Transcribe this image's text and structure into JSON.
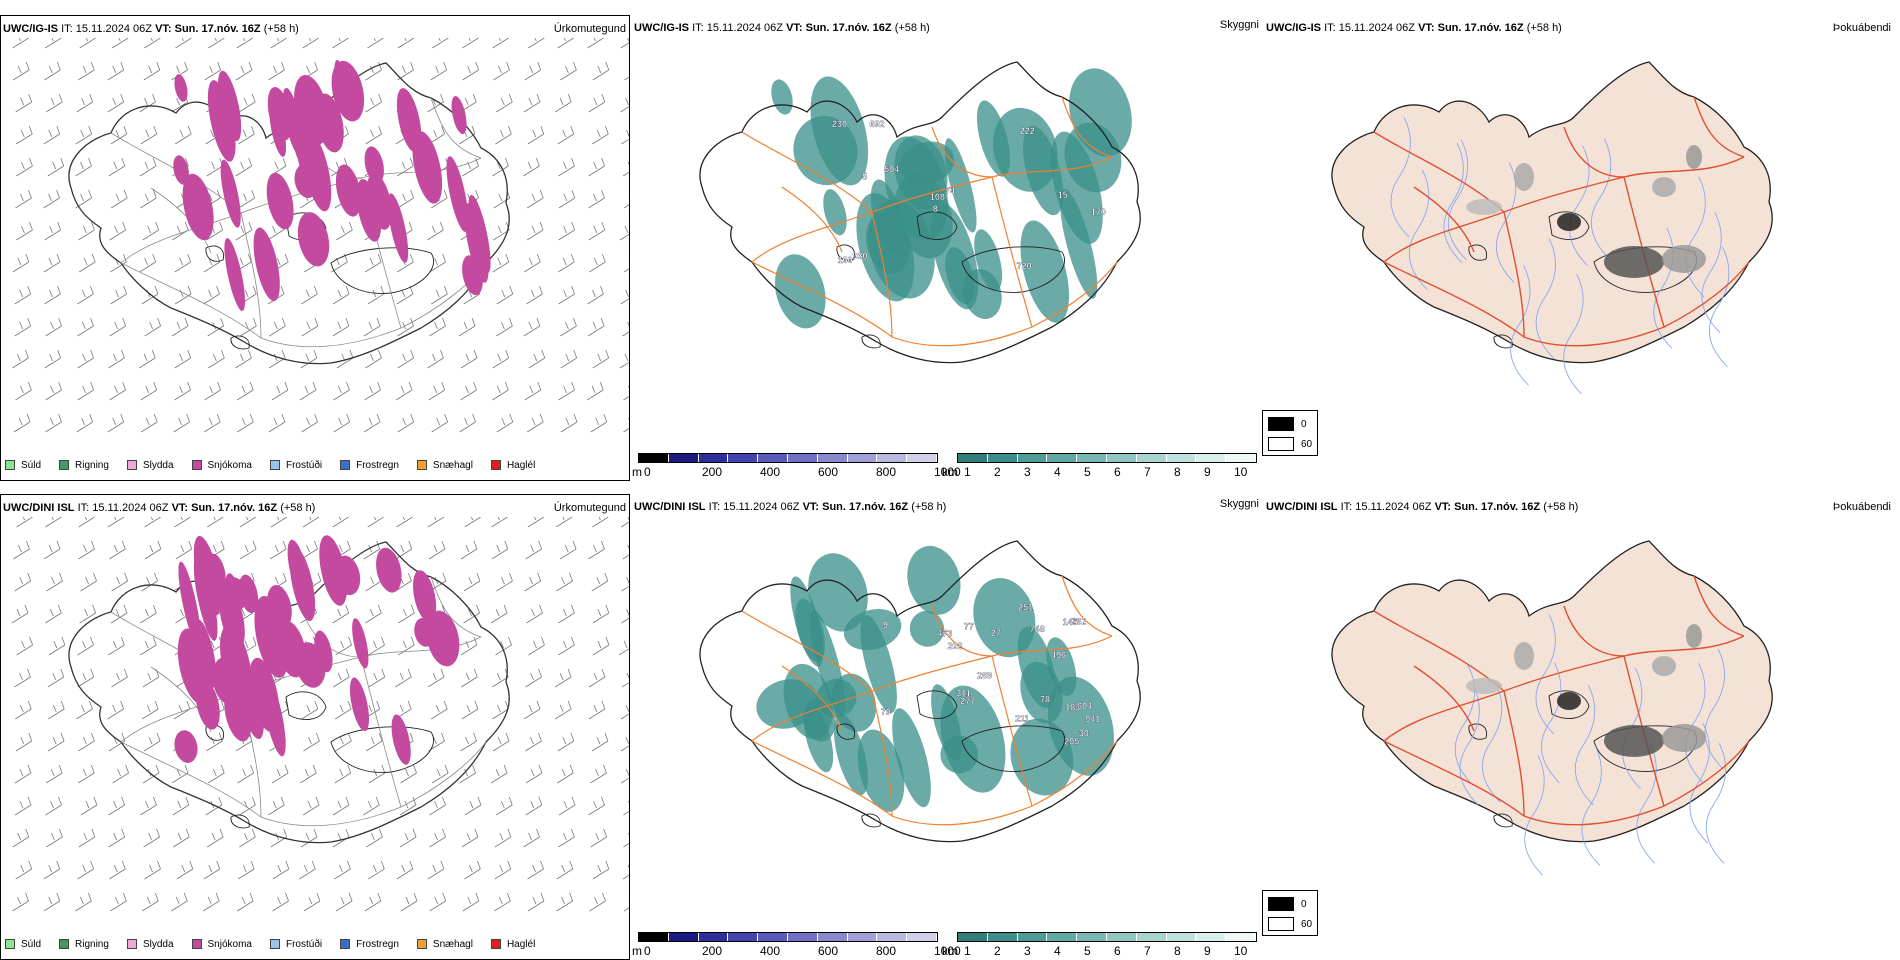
{
  "rows": [
    {
      "model": "UWC/IG-IS",
      "it_label": "IT:",
      "it_value": "15.11.2024 06Z",
      "vt_label": "VT:",
      "vt_value": "Sun. 17.nóv. 16Z",
      "lead": "(+58 h)",
      "panel_types": [
        "Úrkomutegund",
        "Skyggni",
        "Þokuábendi"
      ],
      "cloud_labels": [
        "230",
        "74",
        "594",
        "5",
        "8",
        "108",
        "930",
        "170",
        "692",
        "720",
        "160",
        "222",
        "15"
      ]
    },
    {
      "model": "UWC/DINI ISL",
      "it_label": "IT:",
      "it_value": "15.11.2024 06Z",
      "vt_label": "VT:",
      "vt_value": "Sun. 17.nóv. 16Z",
      "lead": "(+58 h)",
      "panel_types": [
        "Úrkomutegund",
        "Skyggni",
        "Þokuábendi"
      ],
      "cloud_labels": [
        "269",
        "748",
        "262",
        "473",
        "77",
        "202",
        "295",
        "941",
        "9",
        "30",
        "78",
        "27",
        "145",
        "311",
        "211",
        "79",
        "277",
        "183",
        "604",
        "251",
        "496"
      ]
    }
  ],
  "precip_legend": [
    {
      "label": "Súld",
      "color": "#8fe28f"
    },
    {
      "label": "Rigning",
      "color": "#3f9a6a"
    },
    {
      "label": "Slydda",
      "color": "#f0a8d8"
    },
    {
      "label": "Snjókoma",
      "color": "#c44aa0"
    },
    {
      "label": "Frostúði",
      "color": "#9ac4f0"
    },
    {
      "label": "Frostregn",
      "color": "#3a6fc4"
    },
    {
      "label": "Snæhagl",
      "color": "#f0a030"
    },
    {
      "label": "Haglél",
      "color": "#e02020"
    }
  ],
  "cloud_scale": {
    "unit": "m",
    "ticks": [
      "0",
      "200",
      "400",
      "600",
      "800",
      "1000"
    ]
  },
  "vis_scale": {
    "unit": "km",
    "ticks": [
      "1",
      "2",
      "3",
      "4",
      "5",
      "6",
      "7",
      "8",
      "9",
      "10"
    ]
  },
  "fog_key": {
    "high": "0",
    "low": "60"
  },
  "colors": {
    "snow": "#c44aa0",
    "visibility": "#3a8f8a",
    "roads": "#f08030",
    "land_fog": "#f4e2d6",
    "rivers": "#8aa8f0",
    "fog_roads": "#e05030"
  }
}
